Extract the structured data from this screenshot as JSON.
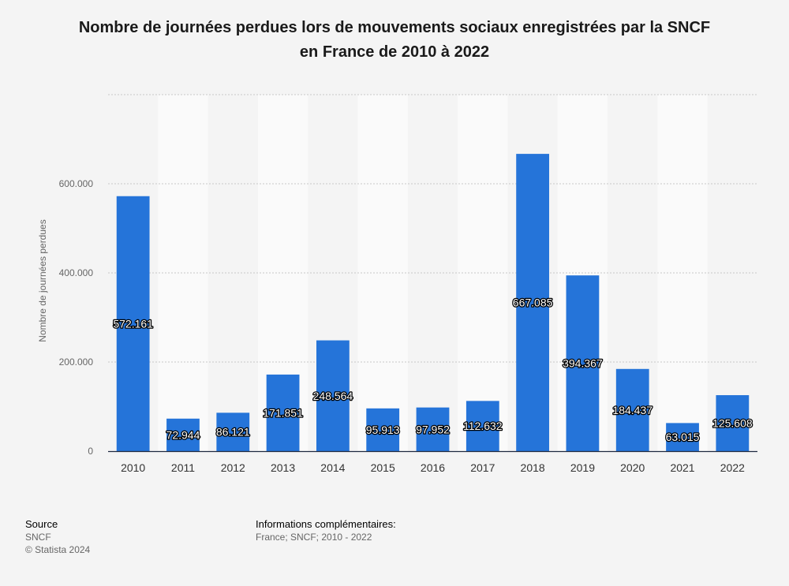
{
  "title_line1": "Nombre de journées perdues lors de mouvements sociaux enregistrées par la SNCF",
  "title_line2": "en France de 2010 à 2022",
  "footer": {
    "source_label": "Source",
    "source_value": "SNCF",
    "copyright": "© Statista 2024",
    "info_label": "Informations complémentaires:",
    "info_value": "France; SNCF; 2010 - 2022"
  },
  "colors": {
    "bar": "#2574d9",
    "band": "#fafafa",
    "grid": "#c8c8c8",
    "axis": "#1f2a40"
  },
  "chart_data": {
    "type": "bar",
    "title": "Nombre de journées perdues lors de mouvements sociaux enregistrées par la SNCF en France de 2010 à 2022",
    "xlabel": "",
    "ylabel": "Nombre de journées perdues",
    "ylim": [
      0,
      800000
    ],
    "yticks": [
      0,
      200000,
      400000,
      600000
    ],
    "ytick_labels": [
      "0",
      "200.000",
      "400.000",
      "600.000"
    ],
    "grid": true,
    "categories": [
      "2010",
      "2011",
      "2012",
      "2013",
      "2014",
      "2015",
      "2016",
      "2017",
      "2018",
      "2019",
      "2020",
      "2021",
      "2022"
    ],
    "values": [
      572161,
      72944,
      86121,
      171851,
      248564,
      95913,
      97952,
      112632,
      667085,
      394367,
      184437,
      63015,
      125608
    ],
    "value_labels": [
      "572.161",
      "72.944",
      "86.121",
      "171.851",
      "248.564",
      "95.913",
      "97.952",
      "112.632",
      "667.085",
      "394.367",
      "184.437",
      "63.015",
      "125.608"
    ]
  }
}
